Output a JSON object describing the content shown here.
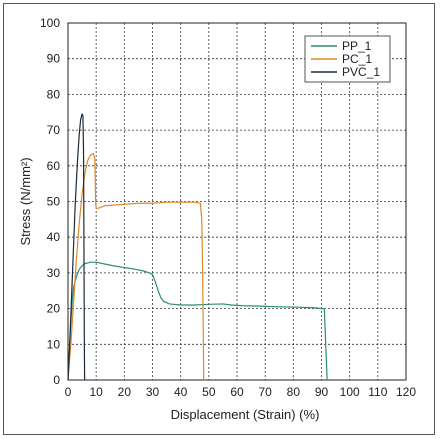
{
  "chart_data": {
    "type": "line",
    "title": "",
    "xlabel": "Displacement (Strain) (%)",
    "ylabel": "Stress (N/mm²)",
    "xlim": [
      0,
      120
    ],
    "ylim": [
      0,
      100
    ],
    "x_ticks": [
      "0",
      "10",
      "20",
      "30",
      "40",
      "50",
      "60",
      "70",
      "80",
      "90",
      "100",
      "110",
      "120"
    ],
    "y_ticks": [
      "0",
      "10",
      "20",
      "30",
      "40",
      "50",
      "60",
      "70",
      "80",
      "90",
      "100"
    ],
    "grid": "dashed",
    "legend_position": "top-right",
    "series": [
      {
        "name": "PP_1",
        "color": "#2e8b78",
        "points": [
          [
            0,
            0
          ],
          [
            0.5,
            8
          ],
          [
            1,
            16
          ],
          [
            1.5,
            22
          ],
          [
            2,
            26
          ],
          [
            3,
            29
          ],
          [
            4,
            31
          ],
          [
            5,
            32
          ],
          [
            6,
            32.6
          ],
          [
            8,
            33
          ],
          [
            10,
            33
          ],
          [
            13,
            32.5
          ],
          [
            16,
            32
          ],
          [
            20,
            31.5
          ],
          [
            24,
            31
          ],
          [
            27,
            30.5
          ],
          [
            29,
            30
          ],
          [
            30,
            29.5
          ],
          [
            31,
            27.5
          ],
          [
            32,
            25
          ],
          [
            33,
            23
          ],
          [
            34,
            22
          ],
          [
            36,
            21.3
          ],
          [
            40,
            21
          ],
          [
            45,
            21
          ],
          [
            50,
            21.2
          ],
          [
            55,
            21.3
          ],
          [
            58,
            21
          ],
          [
            62,
            20.8
          ],
          [
            68,
            20.7
          ],
          [
            75,
            20.5
          ],
          [
            82,
            20.4
          ],
          [
            88,
            20.2
          ],
          [
            90,
            20
          ],
          [
            91,
            20
          ],
          [
            91.5,
            10
          ],
          [
            92,
            0
          ]
        ]
      },
      {
        "name": "PC_1",
        "color": "#d98a2b",
        "points": [
          [
            0,
            0
          ],
          [
            1,
            10
          ],
          [
            2,
            22
          ],
          [
            3,
            34
          ],
          [
            4,
            44
          ],
          [
            5,
            52
          ],
          [
            6,
            58
          ],
          [
            7,
            61.5
          ],
          [
            8,
            63
          ],
          [
            9,
            63.5
          ],
          [
            9.5,
            62
          ],
          [
            9.7,
            55
          ],
          [
            9.8,
            50
          ],
          [
            10,
            48
          ],
          [
            11,
            48.2
          ],
          [
            13,
            48.8
          ],
          [
            16,
            49
          ],
          [
            20,
            49.2
          ],
          [
            25,
            49.5
          ],
          [
            30,
            49.5
          ],
          [
            35,
            49.8
          ],
          [
            40,
            49.8
          ],
          [
            45,
            49.8
          ],
          [
            47,
            49.5
          ],
          [
            47.5,
            45
          ],
          [
            47.8,
            30
          ],
          [
            48,
            15
          ],
          [
            48.2,
            0
          ]
        ]
      },
      {
        "name": "PVC_1",
        "color": "#1a2a3a",
        "points": [
          [
            0,
            0
          ],
          [
            0.5,
            8
          ],
          [
            1,
            18
          ],
          [
            1.5,
            28
          ],
          [
            2,
            38
          ],
          [
            2.5,
            48
          ],
          [
            3,
            56
          ],
          [
            3.5,
            63
          ],
          [
            4,
            69
          ],
          [
            4.5,
            73
          ],
          [
            5,
            74.5
          ],
          [
            5.3,
            74
          ],
          [
            5.5,
            65
          ],
          [
            5.6,
            50
          ],
          [
            5.7,
            30
          ],
          [
            5.8,
            10
          ],
          [
            5.9,
            0
          ]
        ]
      }
    ]
  }
}
